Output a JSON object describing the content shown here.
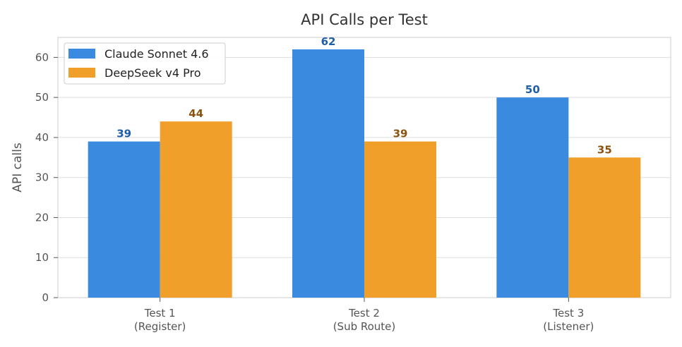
{
  "chart_data": {
    "type": "bar",
    "title": "API Calls per Test",
    "xlabel": "",
    "ylabel": "API calls",
    "categories": [
      [
        "Test 1",
        "(Register)"
      ],
      [
        "Test 2",
        "(Sub Route)"
      ],
      [
        "Test 3",
        "(Listener)"
      ]
    ],
    "series": [
      {
        "name": "Claude Sonnet 4.6",
        "values": [
          39,
          62,
          50
        ],
        "color": "#3a8be0",
        "label_color": "#1f5fa8"
      },
      {
        "name": "DeepSeek v4 Pro",
        "values": [
          44,
          39,
          35
        ],
        "color": "#f0a02a",
        "label_color": "#8a5410"
      }
    ],
    "ylim": [
      0,
      65
    ],
    "yticks": [
      0,
      10,
      20,
      30,
      40,
      50,
      60
    ],
    "grid": true,
    "legend_position": "top-left"
  }
}
